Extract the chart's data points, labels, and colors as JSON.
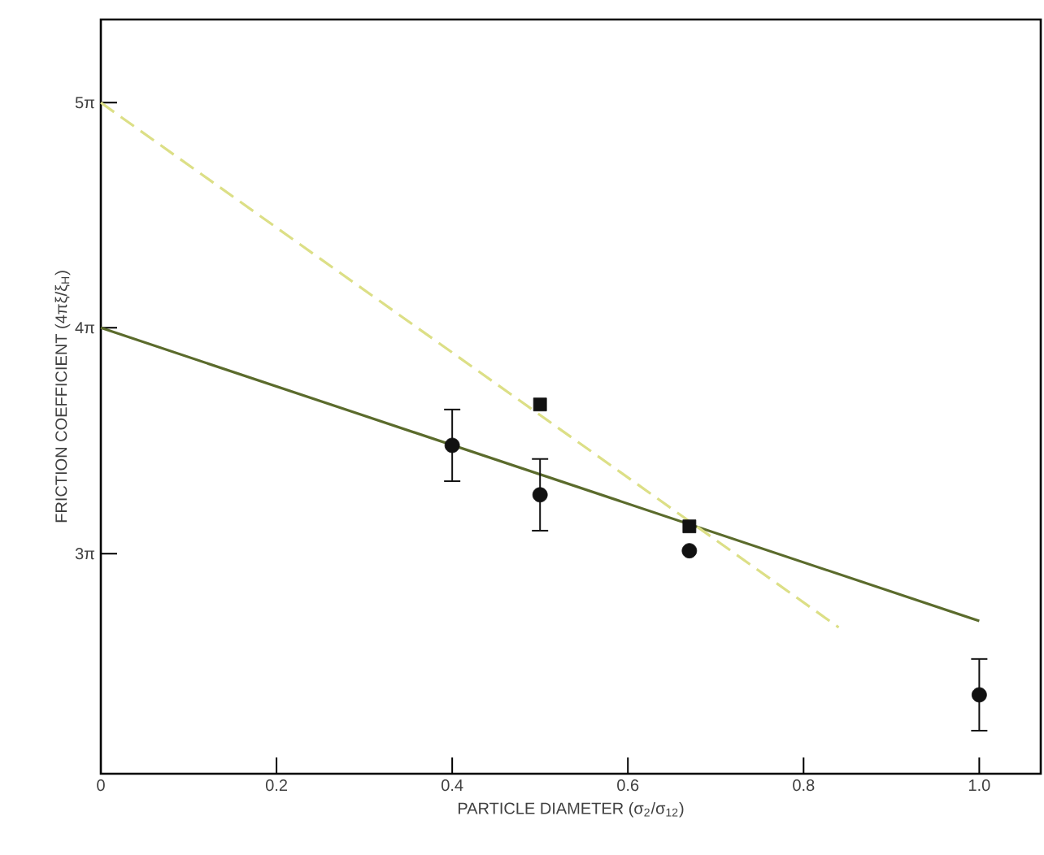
{
  "chart_data": {
    "type": "scatter",
    "xlabel": "PARTICLE DIAMETER (σ$_{2}$/σ$_{12}$)",
    "ylabel": "FRICTION COEFFICIENT (4πξ/ξ$_{H}$)",
    "xlim": [
      0,
      1.07
    ],
    "ylim": [
      6.35,
      16.87
    ],
    "xticks": [
      0,
      0.2,
      0.4,
      0.6,
      0.8,
      {
        "value": 1,
        "label": "1.0"
      }
    ],
    "yticks": [
      {
        "value": 9.42,
        "label": "3π"
      },
      {
        "value": 12.57,
        "label": "4π"
      },
      {
        "value": 15.71,
        "label": "5π"
      }
    ],
    "series": [
      {
        "type": "line",
        "x": [
          0,
          1.0
        ],
        "values": [
          12.57,
          8.48
        ],
        "color": "#5b6b2c",
        "line_style": "solid",
        "marker": "none"
      },
      {
        "type": "line",
        "x": [
          0,
          0.84
        ],
        "values": [
          15.71,
          8.39
        ],
        "color": "#dcdf86",
        "line_style": "dashed",
        "marker": "none"
      },
      {
        "x": [
          0.4,
          0.5,
          0.67,
          1.0
        ],
        "values": [
          10.93,
          10.24,
          9.46,
          7.45
        ],
        "errors": [
          0.5,
          0.5,
          null,
          0.5
        ],
        "color": "#111111",
        "marker": "circle"
      },
      {
        "type": "scatter",
        "x": [
          0.5,
          0.67
        ],
        "values": [
          11.5,
          9.8
        ],
        "color": "#111111",
        "marker": "square"
      }
    ]
  }
}
